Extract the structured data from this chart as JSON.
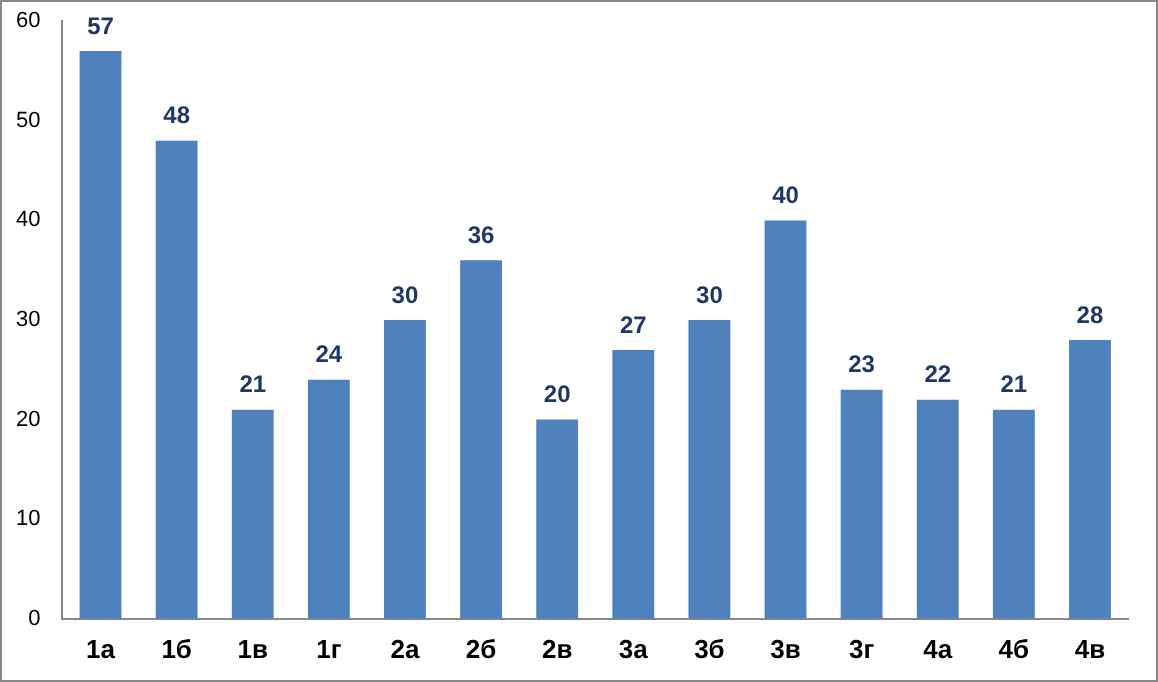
{
  "chart_data": {
    "type": "bar",
    "categories": [
      "1а",
      "1б",
      "1в",
      "1г",
      "2а",
      "2б",
      "2в",
      "3а",
      "3б",
      "3в",
      "3г",
      "4а",
      "4б",
      "4в"
    ],
    "values": [
      57,
      48,
      21,
      24,
      30,
      36,
      20,
      27,
      30,
      40,
      23,
      22,
      21,
      28
    ],
    "color": "#4f81bd",
    "ylim": [
      0,
      60
    ],
    "yticks": [
      0,
      10,
      20,
      30,
      40,
      50,
      60
    ],
    "grid": false,
    "legend": false,
    "data_labels": true
  }
}
